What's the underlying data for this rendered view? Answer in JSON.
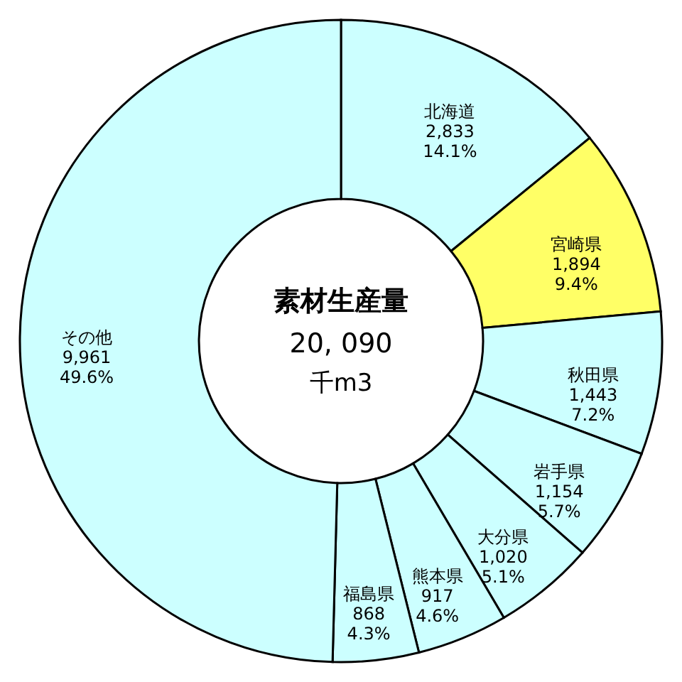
{
  "chart_data": {
    "type": "donut",
    "title": "素材生産量",
    "subtitle": "20, 090",
    "annotations": [
      "千m3"
    ],
    "categories": [
      "北海道",
      "宮崎県",
      "秋田県",
      "岩手県",
      "大分県",
      "熊本県",
      "福島県",
      "その他"
    ],
    "values": [
      2833,
      1894,
      1443,
      1154,
      1020,
      917,
      868,
      9961
    ],
    "colors": [
      "#ccffff",
      "#ffff66",
      "#ccffff",
      "#ccffff",
      "#ccffff",
      "#ccffff",
      "#ccffff",
      "#ccffff"
    ],
    "value_labels": [
      "2,833\n14.1%",
      "1,894\n9.4%",
      "1,443\n7.2%",
      "1,154\n5.7%",
      "1,020\n5.1%",
      "917\n4.6%",
      "868\n4.3%",
      "9,961\n49.6%"
    ]
  }
}
